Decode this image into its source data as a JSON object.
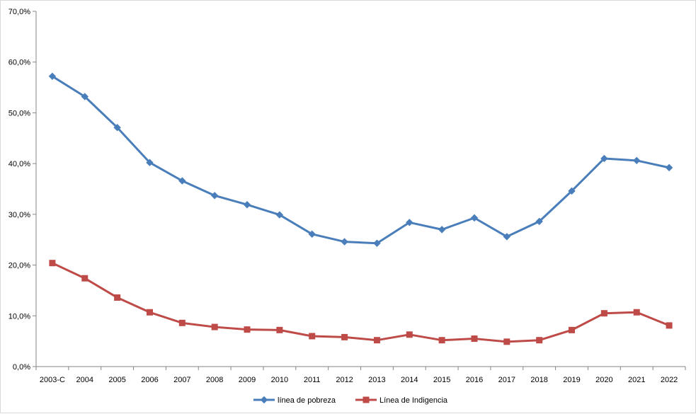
{
  "chart_data": {
    "type": "line",
    "title": "",
    "xlabel": "",
    "ylabel": "",
    "categories": [
      "2003-C",
      "2004",
      "2005",
      "2006",
      "2007",
      "2008",
      "2009",
      "2010",
      "2011",
      "2012",
      "2013",
      "2014",
      "2015",
      "2016",
      "2017",
      "2018",
      "2019",
      "2020",
      "2021",
      "2022"
    ],
    "ylim": [
      0,
      70
    ],
    "y_ticks": [
      "0,0%",
      "10,0%",
      "20,0%",
      "30,0%",
      "40,0%",
      "50,0%",
      "60,0%",
      "70,0%"
    ],
    "y_tick_values": [
      0,
      10,
      20,
      30,
      40,
      50,
      60,
      70
    ],
    "grid": false,
    "legend_position": "bottom",
    "series": [
      {
        "name": "línea de pobreza",
        "color": "#4a7ebb",
        "marker": "diamond",
        "values": [
          57.2,
          53.2,
          47.1,
          40.2,
          36.6,
          33.7,
          31.9,
          29.9,
          26.1,
          24.6,
          24.3,
          28.4,
          27.0,
          29.3,
          25.6,
          28.6,
          34.6,
          41.0,
          40.6,
          39.2
        ]
      },
      {
        "name": "Línea de Indigencia",
        "color": "#be4b48",
        "marker": "square",
        "values": [
          20.4,
          17.4,
          13.6,
          10.7,
          8.6,
          7.8,
          7.3,
          7.2,
          6.0,
          5.8,
          5.2,
          6.3,
          5.2,
          5.5,
          4.9,
          5.2,
          7.2,
          10.5,
          10.7,
          8.1
        ]
      }
    ]
  }
}
